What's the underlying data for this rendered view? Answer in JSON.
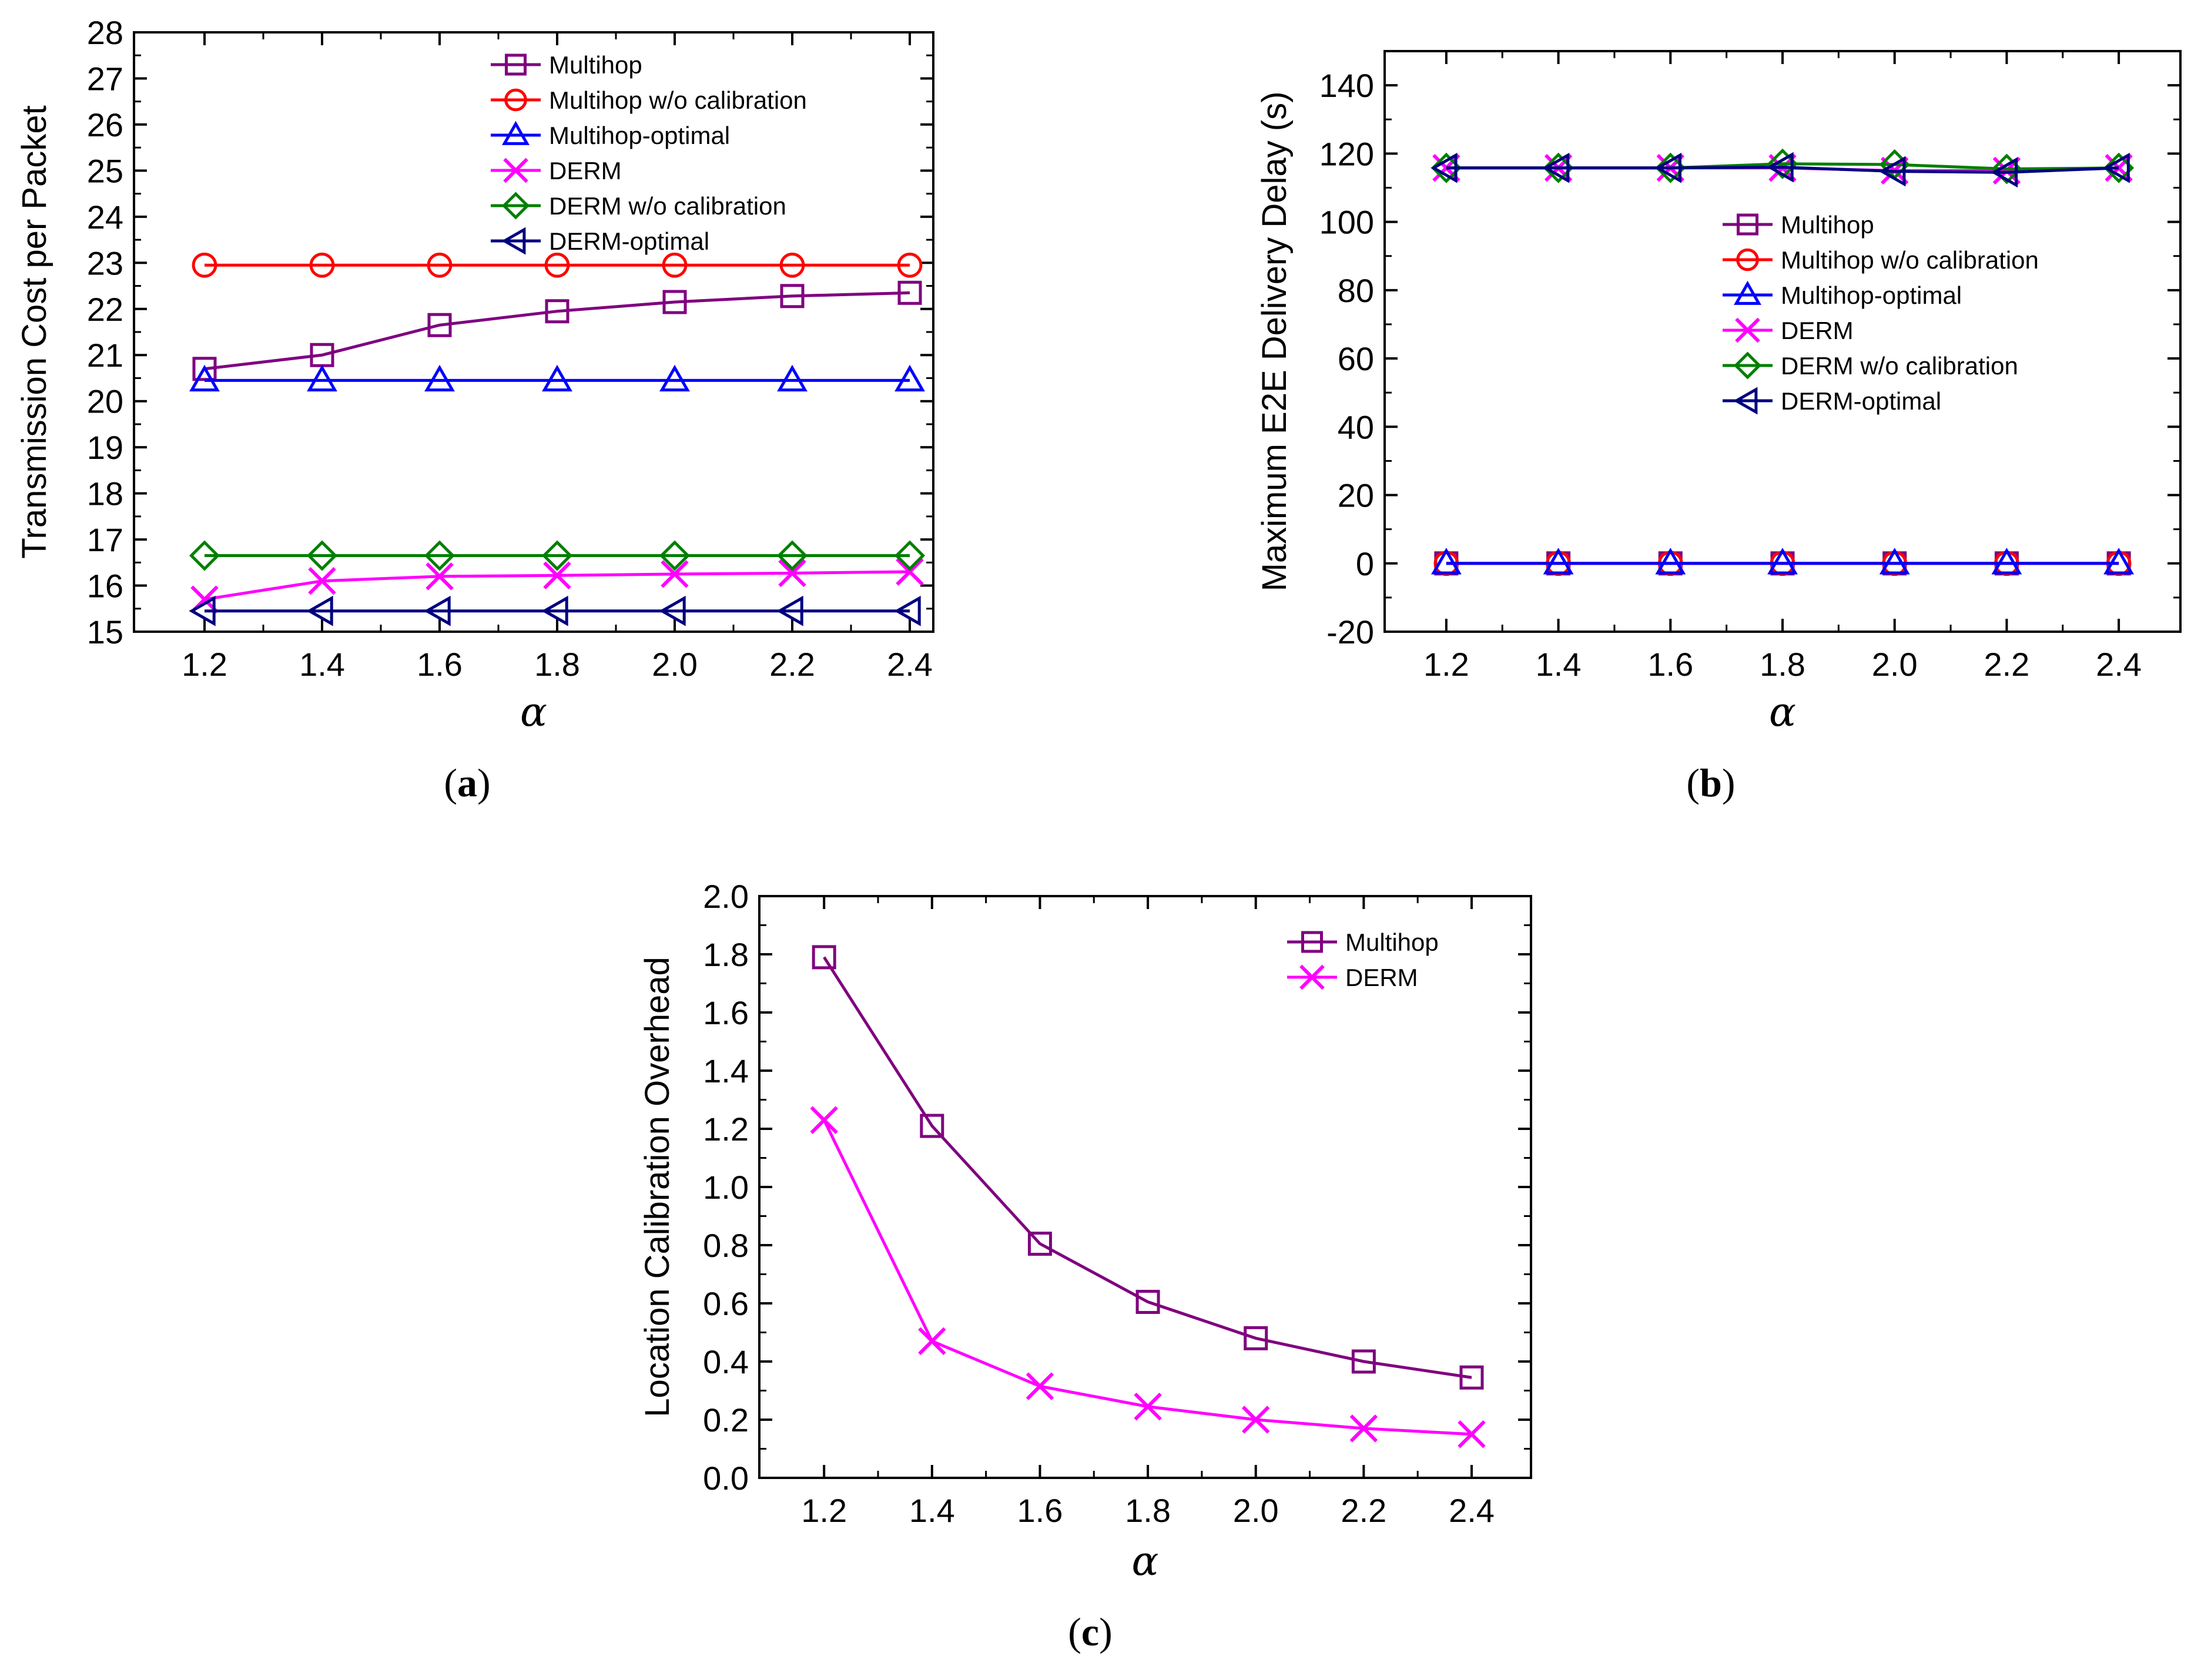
{
  "colors": {
    "Multihop": "#7f007f",
    "Multihop w/o calibration": "#ff0000",
    "Multihop-optimal": "#0000ff",
    "DERM": "#ff00ff",
    "DERM w/o calibration": "#007f00",
    "DERM-optimal": "#00007f"
  },
  "markers": {
    "Multihop": "square",
    "Multihop w/o calibration": "circle",
    "Multihop-optimal": "triangle-up",
    "DERM": "x-cross",
    "DERM w/o calibration": "diamond",
    "DERM-optimal": "triangle-left"
  },
  "chart_data": [
    {
      "id": "a",
      "type": "line",
      "caption_letter": "a",
      "xlabel": "α",
      "ylabel": "Transmission Cost per Packet",
      "x": [
        1.2,
        1.4,
        1.6,
        1.8,
        2.0,
        2.2,
        2.4
      ],
      "x_ticks": [
        "1.2",
        "1.4",
        "1.6",
        "1.8",
        "2.0",
        "2.2",
        "2.4"
      ],
      "xlim": [
        1.08,
        2.44
      ],
      "ylim": [
        15,
        28
      ],
      "y_ticks": [
        15,
        16,
        17,
        18,
        19,
        20,
        21,
        22,
        23,
        24,
        25,
        26,
        27,
        28
      ],
      "legend_position": "top-right",
      "series": [
        {
          "name": "Multihop",
          "values": [
            20.7,
            21.0,
            21.65,
            21.95,
            22.15,
            22.28,
            22.35
          ]
        },
        {
          "name": "Multihop w/o calibration",
          "values": [
            22.95,
            22.95,
            22.95,
            22.95,
            22.95,
            22.95,
            22.95
          ]
        },
        {
          "name": "Multihop-optimal",
          "values": [
            20.45,
            20.45,
            20.45,
            20.45,
            20.45,
            20.45,
            20.45
          ]
        },
        {
          "name": "DERM",
          "values": [
            15.7,
            16.1,
            16.2,
            16.22,
            16.25,
            16.27,
            16.3
          ]
        },
        {
          "name": "DERM w/o calibration",
          "values": [
            16.65,
            16.65,
            16.65,
            16.65,
            16.65,
            16.65,
            16.65
          ]
        },
        {
          "name": "DERM-optimal",
          "values": [
            15.45,
            15.45,
            15.45,
            15.45,
            15.45,
            15.45,
            15.45
          ]
        }
      ]
    },
    {
      "id": "b",
      "type": "line",
      "caption_letter": "b",
      "xlabel": "α",
      "ylabel": "Maximum E2E Delivery Delay (s)",
      "x": [
        1.2,
        1.4,
        1.6,
        1.8,
        2.0,
        2.2,
        2.4
      ],
      "x_ticks": [
        "1.2",
        "1.4",
        "1.6",
        "1.8",
        "2.0",
        "2.2",
        "2.4"
      ],
      "xlim": [
        1.09,
        2.51
      ],
      "ylim": [
        -20,
        150
      ],
      "y_ticks": [
        -20,
        0,
        20,
        40,
        60,
        80,
        100,
        120,
        140
      ],
      "legend_position": "center-right",
      "series": [
        {
          "name": "Multihop",
          "values": [
            0,
            0,
            0,
            0,
            0,
            0,
            0
          ]
        },
        {
          "name": "Multihop w/o calibration",
          "values": [
            0,
            0,
            0,
            0,
            0,
            0,
            0
          ]
        },
        {
          "name": "Multihop-optimal",
          "values": [
            0,
            0,
            0,
            0,
            0,
            0,
            0
          ]
        },
        {
          "name": "DERM",
          "values": [
            115.8,
            115.8,
            115.8,
            115.8,
            115.0,
            115.0,
            115.8
          ]
        },
        {
          "name": "DERM w/o calibration",
          "values": [
            115.8,
            115.8,
            115.8,
            117.0,
            116.8,
            115.5,
            115.8
          ]
        },
        {
          "name": "DERM-optimal",
          "values": [
            115.8,
            115.8,
            115.8,
            116.0,
            114.8,
            114.5,
            115.8
          ]
        }
      ]
    },
    {
      "id": "c",
      "type": "line",
      "caption_letter": "c",
      "xlabel": "α",
      "ylabel": "Location Calibration Overhead",
      "x": [
        1.2,
        1.4,
        1.6,
        1.8,
        2.0,
        2.2,
        2.4
      ],
      "x_ticks": [
        "1.2",
        "1.4",
        "1.6",
        "1.8",
        "2.0",
        "2.2",
        "2.4"
      ],
      "xlim": [
        1.08,
        2.51
      ],
      "ylim": [
        0,
        2.0
      ],
      "y_ticks": [
        0.0,
        0.2,
        0.4,
        0.6,
        0.8,
        1.0,
        1.2,
        1.4,
        1.6,
        1.8,
        2.0
      ],
      "y_tick_labels": [
        "0.0",
        "0.2",
        "0.4",
        "0.6",
        "0.8",
        "1.0",
        "1.2",
        "1.4",
        "1.6",
        "1.8",
        "2.0"
      ],
      "legend_position": "top-right",
      "series": [
        {
          "name": "Multihop",
          "values": [
            1.79,
            1.21,
            0.805,
            0.605,
            0.48,
            0.4,
            0.345
          ]
        },
        {
          "name": "DERM",
          "values": [
            1.23,
            0.47,
            0.315,
            0.245,
            0.2,
            0.17,
            0.15
          ]
        }
      ]
    }
  ]
}
